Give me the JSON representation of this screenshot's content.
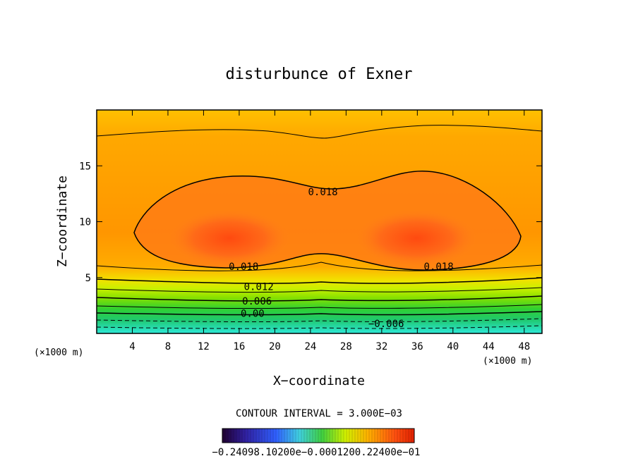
{
  "chart_data": {
    "type": "contour",
    "title": "disturbunce of Exner",
    "xlabel": "X−coordinate",
    "ylabel": "Z−coordinate",
    "x_unit": "(×1000 m)",
    "y_unit": "(×1000 m)",
    "xlim": [
      0,
      50
    ],
    "ylim": [
      0,
      20
    ],
    "x_ticks": [
      4,
      8,
      12,
      16,
      20,
      24,
      28,
      32,
      36,
      40,
      44,
      48
    ],
    "y_ticks": [
      5,
      10,
      15
    ],
    "contour_interval_text": "CONTOUR INTERVAL = 3.000E−03",
    "contour_labels": [
      {
        "text": "0.018",
        "x": 25.4,
        "z": 12.5
      },
      {
        "text": "0.018",
        "x": 16.5,
        "z": 5.8
      },
      {
        "text": "0.018",
        "x": 38.4,
        "z": 5.8
      },
      {
        "text": "0.012",
        "x": 18.2,
        "z": 4.0
      },
      {
        "text": "0.006",
        "x": 18.0,
        "z": 2.7
      },
      {
        "text": "0.00",
        "x": 17.5,
        "z": 1.6
      },
      {
        "text": "−0.006",
        "x": 32.5,
        "z": 0.7
      }
    ],
    "colorbar_tick_text": "−0.24098.10200e−0.0001200.22400e−01",
    "colors": {
      "cyan": "#2de8d8",
      "green": "#30d030",
      "yellow": "#e8f000",
      "orange": "#ff9c00",
      "red_orange": "#ff5a18"
    }
  }
}
